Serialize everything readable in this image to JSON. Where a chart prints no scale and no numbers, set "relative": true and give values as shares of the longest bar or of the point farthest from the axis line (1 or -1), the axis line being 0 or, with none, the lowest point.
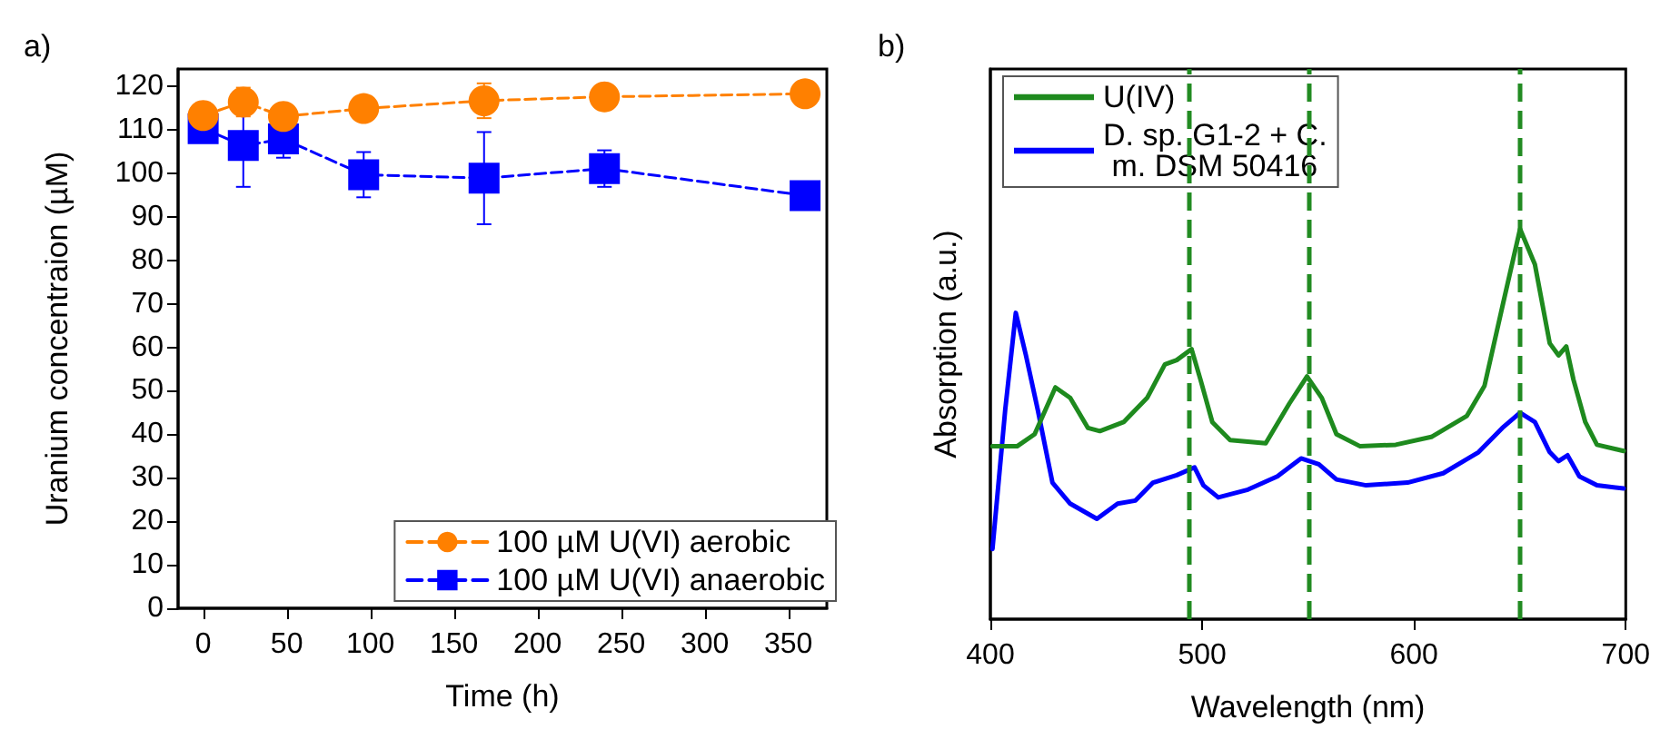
{
  "chart_data": [
    {
      "type": "line",
      "title": "a)",
      "xlabel": "Time (h)",
      "ylabel": "Uranium concentraion (µM)",
      "xlim": [
        -15,
        373
      ],
      "xticks": [
        0,
        50,
        100,
        150,
        200,
        250,
        300,
        350
      ],
      "ylim": [
        0,
        124
      ],
      "yticks": [
        0,
        10,
        20,
        30,
        40,
        50,
        60,
        70,
        80,
        90,
        100,
        110,
        120
      ],
      "grid": false,
      "legend": "bottom right",
      "line_style": "dashed",
      "x": [
        0,
        24,
        48,
        96,
        168,
        240,
        360
      ],
      "series": [
        {
          "name": "100 µM U(VI) aerobic",
          "color": "#ff8000",
          "marker": "circle",
          "values": [
            113.3,
            116.4,
            113.1,
            114.9,
            116.7,
            117.6,
            118.3
          ],
          "errors": [
            3,
            3.3,
            1.5,
            1.5,
            4,
            2.5,
            2
          ]
        },
        {
          "name": "100 µM U(VI) anaerobic",
          "color": "#0000ff",
          "marker": "square",
          "values": [
            110.3,
            106.4,
            107.9,
            99.7,
            98.9,
            101.1,
            94.9
          ],
          "errors": [
            3,
            9.5,
            4.3,
            5.2,
            10.6,
            4.2,
            null
          ]
        }
      ]
    },
    {
      "type": "line",
      "title": "b)",
      "xlabel": "Wavelength (nm)",
      "ylabel": "Absorption (a.u.)",
      "xlim": [
        400,
        700
      ],
      "xticks": [
        400,
        500,
        600,
        700
      ],
      "relative": true,
      "tick_labels": "x",
      "grid": false,
      "legend": "top left",
      "marker": "none",
      "line_style": "solid",
      "ref_lines": [
        {
          "axis": "x",
          "value": 494,
          "color": "#228b22",
          "line_style": "dashed"
        },
        {
          "axis": "x",
          "value": 550,
          "color": "#228b22",
          "line_style": "dashed"
        },
        {
          "axis": "x",
          "value": 650,
          "color": "#228b22",
          "line_style": "dashed"
        }
      ],
      "series": [
        {
          "name": "U(IV)",
          "color": "#1e8a1e",
          "x": [
            401,
            412.6,
            420.9,
            430.7,
            437.7,
            446.1,
            451.7,
            462.9,
            474,
            482.4,
            488,
            495,
            499.2,
            504.8,
            513.2,
            530,
            541.1,
            549.5,
            556.5,
            563.4,
            574.6,
            591.4,
            608.2,
            625,
            633.3,
            641.7,
            650.1,
            657.1,
            664.1,
            668.3,
            671.9,
            675.3,
            680.9,
            686.4,
            699
          ],
          "values": [
            0.443,
            0.443,
            0.474,
            0.594,
            0.567,
            0.49,
            0.482,
            0.505,
            0.567,
            0.653,
            0.664,
            0.692,
            0.614,
            0.505,
            0.459,
            0.451,
            0.552,
            0.622,
            0.567,
            0.474,
            0.443,
            0.447,
            0.467,
            0.521,
            0.598,
            0.8,
            1.0,
            0.909,
            0.707,
            0.676,
            0.699,
            0.614,
            0.505,
            0.447,
            0.431
          ]
        },
        {
          "name": "D. sp. G1-2 + C. m. DSM 50416",
          "color": "#0000ff",
          "x": [
            401,
            407,
            412,
            416.8,
            422.4,
            429.3,
            437.7,
            450.3,
            460.1,
            468.5,
            476.8,
            488,
            496.4,
            500.6,
            507.6,
            521.6,
            535.5,
            546.7,
            555.1,
            563.4,
            577.4,
            597,
            613.8,
            630.5,
            641.7,
            650.1,
            657.1,
            664.1,
            668.3,
            672.5,
            678.1,
            686.4,
            699
          ],
          "values": [
            0.18,
            0.536,
            0.785,
            0.676,
            0.536,
            0.35,
            0.296,
            0.257,
            0.296,
            0.304,
            0.35,
            0.369,
            0.389,
            0.343,
            0.312,
            0.332,
            0.366,
            0.412,
            0.397,
            0.358,
            0.343,
            0.35,
            0.374,
            0.428,
            0.49,
            0.529,
            0.505,
            0.428,
            0.405,
            0.42,
            0.366,
            0.343,
            0.335
          ]
        }
      ]
    }
  ]
}
